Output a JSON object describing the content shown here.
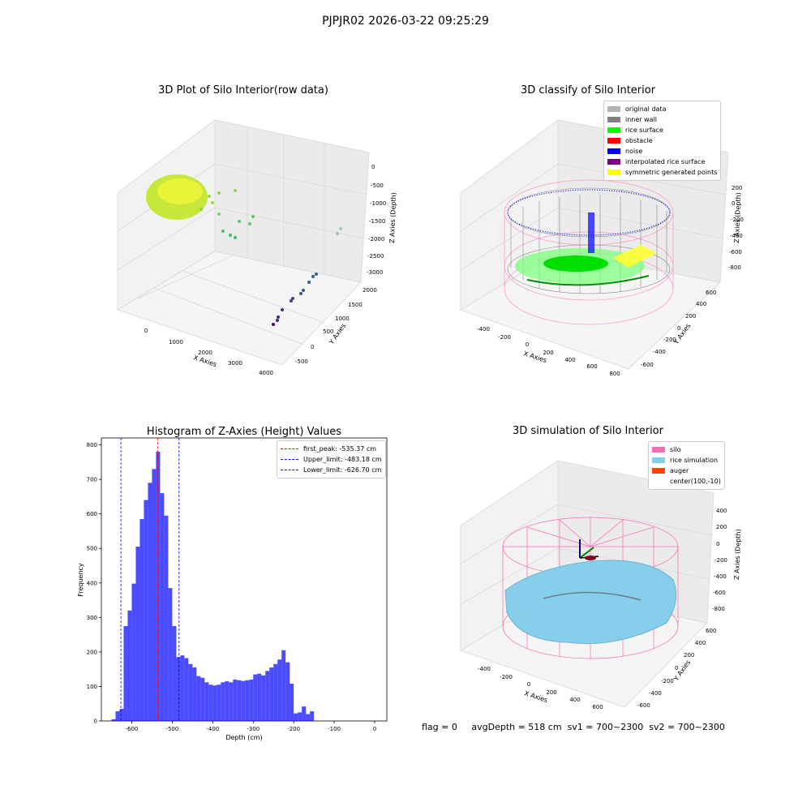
{
  "suptitle": "PJPJR02 2026-03-22 09:25:29",
  "panels": {
    "raw": {
      "title": "3D Plot of Silo Interior(row data)",
      "xlabel": "X Axies",
      "ylabel": "Y Axies",
      "zlabel": "Z Axies (Depth)",
      "xticks": [
        "0",
        "1000",
        "2000",
        "3000",
        "4000"
      ],
      "yticks": [
        "-500",
        "0",
        "500",
        "1000",
        "1500",
        "2000"
      ],
      "zticks": [
        "0",
        "-500",
        "-1000",
        "-1500",
        "-2000",
        "-2500",
        "-3000"
      ]
    },
    "classify": {
      "title": "3D classify of Silo Interior",
      "xlabel": "X Axies",
      "ylabel": "Y Axies",
      "zlabel": "Z Axies (Depth)",
      "xticks": [
        "-400",
        "-200",
        "0",
        "200",
        "400",
        "600",
        "800"
      ],
      "yticks": [
        "-600",
        "-400",
        "-200",
        "0",
        "200",
        "400",
        "600"
      ],
      "zticks": [
        "200",
        "0",
        "-200",
        "-400",
        "-600",
        "-800"
      ],
      "legend": [
        {
          "label": "original data",
          "color": "#b3b3b3"
        },
        {
          "label": "inner wall",
          "color": "#808080"
        },
        {
          "label": "rice surface",
          "color": "#00ff00"
        },
        {
          "label": "obstacle",
          "color": "#ff0000"
        },
        {
          "label": "noise",
          "color": "#0000ff"
        },
        {
          "label": "interpolated rice surface",
          "color": "#800080"
        },
        {
          "label": "symmetric generated points",
          "color": "#ffff00"
        }
      ]
    },
    "simulation": {
      "title": "3D simulation of Silo Interior",
      "xlabel": "X Axies",
      "ylabel": "Y Axies",
      "zlabel": "Z Axies (Depth)",
      "xticks": [
        "-400",
        "-200",
        "0",
        "200",
        "400",
        "600"
      ],
      "yticks": [
        "-600",
        "-400",
        "-200",
        "0",
        "200",
        "400",
        "600"
      ],
      "zticks": [
        "400",
        "200",
        "0",
        "-200",
        "-400",
        "-600",
        "-800"
      ],
      "legend": [
        {
          "label": "silo",
          "color": "#ff69b4"
        },
        {
          "label": "rice simulation",
          "color": "#87ceeb"
        },
        {
          "label": "auger",
          "color": "#ff4500"
        },
        {
          "label": "center(100,-10)",
          "color": ""
        }
      ]
    }
  },
  "chart_data": {
    "type": "bar",
    "title": "Histogram of Z-Axies (Height) Values",
    "xlabel": "Depth (cm)",
    "ylabel": "Frequency",
    "xlim": [
      -675,
      30
    ],
    "ylim": [
      0,
      820
    ],
    "xticks": [
      -600,
      -500,
      -400,
      -300,
      -200,
      -100,
      0
    ],
    "yticks": [
      0,
      100,
      200,
      300,
      400,
      500,
      600,
      700,
      800
    ],
    "bin_width": 10,
    "bar_color": "#0000ff",
    "bins": [
      {
        "x": -650,
        "v": 5
      },
      {
        "x": -640,
        "v": 28
      },
      {
        "x": -630,
        "v": 35
      },
      {
        "x": -620,
        "v": 275
      },
      {
        "x": -610,
        "v": 320
      },
      {
        "x": -600,
        "v": 398
      },
      {
        "x": -590,
        "v": 505
      },
      {
        "x": -580,
        "v": 585
      },
      {
        "x": -570,
        "v": 640
      },
      {
        "x": -560,
        "v": 690
      },
      {
        "x": -550,
        "v": 730
      },
      {
        "x": -540,
        "v": 780
      },
      {
        "x": -530,
        "v": 660
      },
      {
        "x": -520,
        "v": 595
      },
      {
        "x": -510,
        "v": 385
      },
      {
        "x": -500,
        "v": 275
      },
      {
        "x": -490,
        "v": 185
      },
      {
        "x": -480,
        "v": 190
      },
      {
        "x": -470,
        "v": 182
      },
      {
        "x": -460,
        "v": 165
      },
      {
        "x": -450,
        "v": 155
      },
      {
        "x": -440,
        "v": 130
      },
      {
        "x": -430,
        "v": 125
      },
      {
        "x": -420,
        "v": 112
      },
      {
        "x": -410,
        "v": 105
      },
      {
        "x": -400,
        "v": 103
      },
      {
        "x": -390,
        "v": 105
      },
      {
        "x": -380,
        "v": 112
      },
      {
        "x": -370,
        "v": 115
      },
      {
        "x": -360,
        "v": 112
      },
      {
        "x": -350,
        "v": 120
      },
      {
        "x": -340,
        "v": 118
      },
      {
        "x": -330,
        "v": 116
      },
      {
        "x": -320,
        "v": 118
      },
      {
        "x": -310,
        "v": 120
      },
      {
        "x": -300,
        "v": 135
      },
      {
        "x": -290,
        "v": 137
      },
      {
        "x": -280,
        "v": 132
      },
      {
        "x": -270,
        "v": 145
      },
      {
        "x": -260,
        "v": 155
      },
      {
        "x": -250,
        "v": 165
      },
      {
        "x": -240,
        "v": 178
      },
      {
        "x": -230,
        "v": 205
      },
      {
        "x": -220,
        "v": 170
      },
      {
        "x": -210,
        "v": 108
      },
      {
        "x": -200,
        "v": 22
      },
      {
        "x": -190,
        "v": 25
      },
      {
        "x": -180,
        "v": 42
      },
      {
        "x": -170,
        "v": 20
      },
      {
        "x": -160,
        "v": 28
      }
    ],
    "vlines": [
      {
        "label": "first_peak: -535.37 cm",
        "x": -535.37,
        "color": "#ff0000"
      },
      {
        "label": "Upper_limit: -483.18 cm",
        "x": -483.18,
        "color": "#0000ff"
      },
      {
        "label": "Lower_limit: -626.70 cm",
        "x": -626.7,
        "color": "#0000ff"
      }
    ]
  },
  "footer": {
    "flag": "flag = 0",
    "avg": "avgDepth = 518 cm",
    "sv1": "sv1 = 700~2300",
    "sv2": "sv2 = 700~2300"
  }
}
